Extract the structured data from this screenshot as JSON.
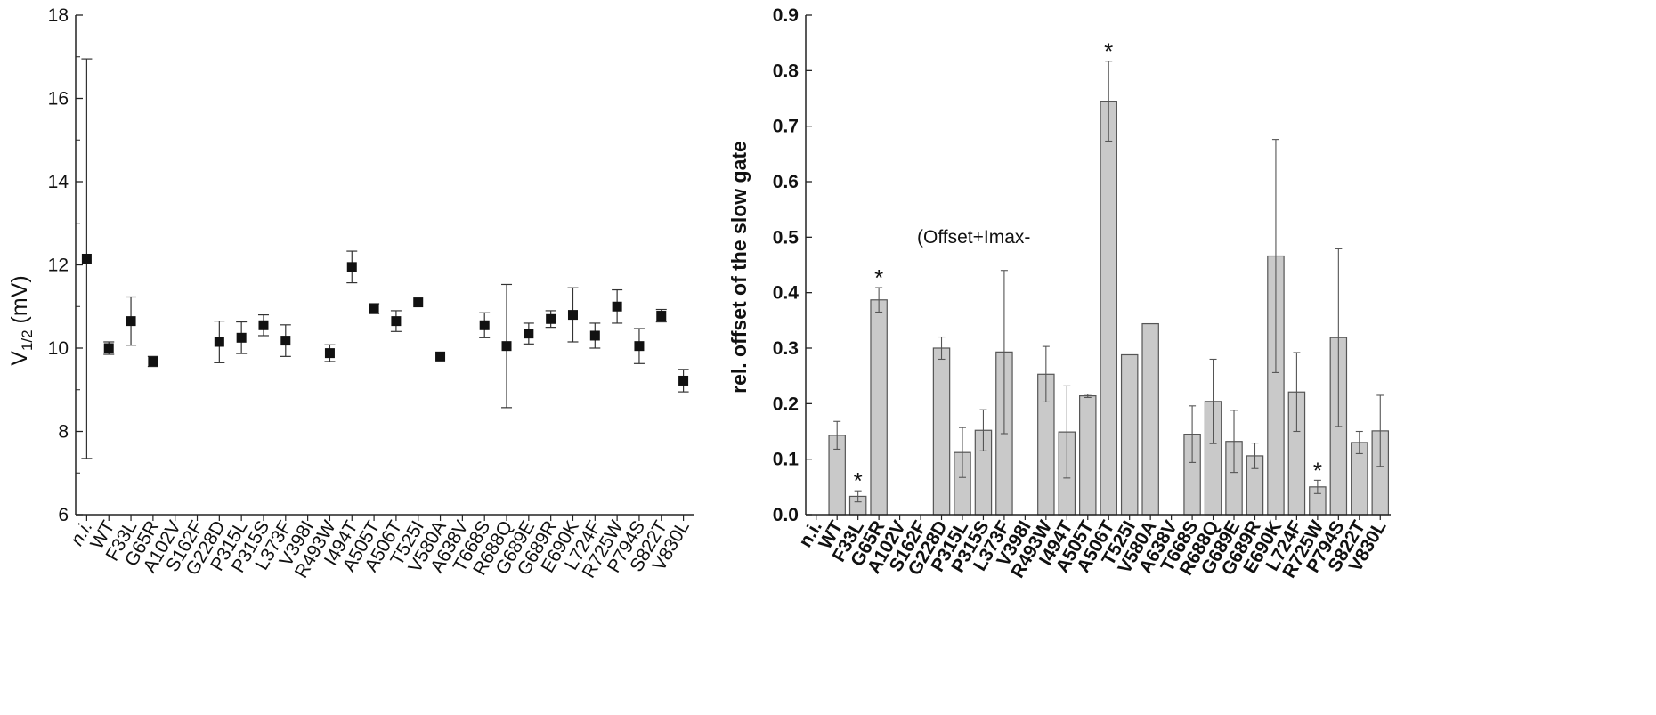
{
  "chart_data": [
    {
      "type": "scatter",
      "ylabel_main": "V",
      "ylabel_sub": "1/2",
      "ylabel_unit": " (mV)",
      "ylim": [
        6,
        18
      ],
      "yticks": [
        "6",
        "8",
        "10",
        "12",
        "14",
        "16",
        "18"
      ],
      "categories": [
        "n.i.",
        "WT",
        "F33L",
        "G65R",
        "A102V",
        "S162F",
        "G228D",
        "P315L",
        "P315S",
        "L373F",
        "V398I",
        "R493W",
        "I494T",
        "A505T",
        "A506T",
        "T525I",
        "V580A",
        "A638V",
        "T668S",
        "R688Q",
        "G689E",
        "G689R",
        "E690K",
        "L724F",
        "R725W",
        "P794S",
        "S822T",
        "V830L"
      ],
      "values": [
        12.15,
        10.0,
        10.65,
        9.68,
        null,
        null,
        10.15,
        10.25,
        10.55,
        10.18,
        null,
        9.88,
        11.95,
        10.95,
        10.65,
        11.1,
        9.8,
        null,
        10.55,
        10.05,
        10.35,
        10.7,
        10.8,
        10.3,
        11.0,
        10.05,
        10.78,
        9.22
      ],
      "errors": [
        4.8,
        0.15,
        0.58,
        0.12,
        null,
        null,
        0.5,
        0.38,
        0.25,
        0.38,
        null,
        0.2,
        0.38,
        0.12,
        0.25,
        0.0,
        0.0,
        null,
        0.3,
        1.48,
        0.25,
        0.2,
        0.65,
        0.3,
        0.4,
        0.42,
        0.15,
        0.27
      ]
    },
    {
      "type": "bar",
      "ylabel": "rel. offset of the slow gate",
      "annotation": "(Offset+Imax-",
      "ylim": [
        0,
        0.9
      ],
      "yticks": [
        "0.0",
        "0.1",
        "0.2",
        "0.3",
        "0.4",
        "0.5",
        "0.6",
        "0.7",
        "0.8",
        "0.9"
      ],
      "categories": [
        "n.i.",
        "WT",
        "F33L",
        "G65R",
        "A102V",
        "S162F",
        "G228D",
        "P315L",
        "P315S",
        "L373F",
        "V398I",
        "R493W",
        "I494T",
        "A505T",
        "A506T",
        "T525I",
        "V580A",
        "A638V",
        "T668S",
        "R688Q",
        "G689E",
        "G689R",
        "E690K",
        "L724F",
        "R725W",
        "P794S",
        "S822T",
        "V830L"
      ],
      "values": [
        null,
        0.143,
        0.033,
        0.387,
        null,
        null,
        0.3,
        0.112,
        0.152,
        0.293,
        null,
        0.253,
        0.149,
        0.214,
        0.745,
        0.288,
        0.344,
        null,
        0.145,
        0.204,
        0.132,
        0.106,
        0.466,
        0.221,
        0.05,
        0.319,
        0.13,
        0.151
      ],
      "errors": [
        null,
        0.025,
        0.01,
        0.022,
        null,
        null,
        0.02,
        0.045,
        0.037,
        0.147,
        null,
        0.05,
        0.083,
        0.003,
        0.072,
        0.0,
        0.0,
        null,
        0.051,
        0.076,
        0.056,
        0.023,
        0.21,
        0.071,
        0.012,
        0.16,
        0.02,
        0.064
      ],
      "significant": [
        "F33L",
        "G65R",
        "A506T",
        "R725W"
      ],
      "significance_marker": "*",
      "bar_color": "#c9c9c9"
    }
  ]
}
